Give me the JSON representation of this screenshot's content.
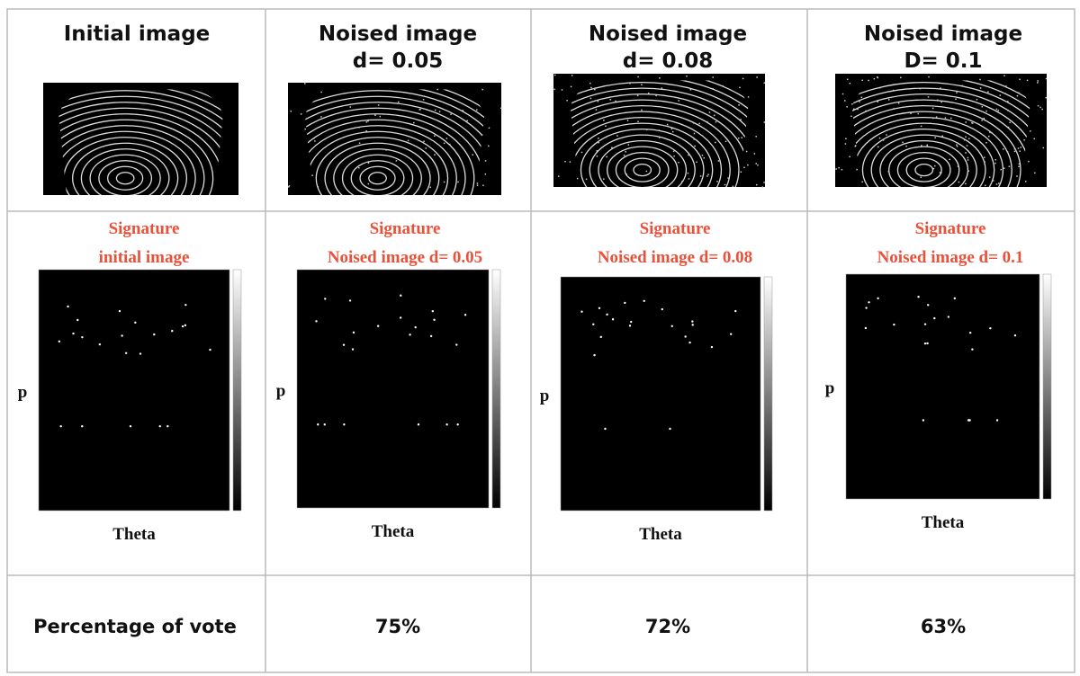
{
  "table": {
    "header": [
      {
        "title": "Initial image"
      },
      {
        "title": "Noised image",
        "subtitle": "d= 0.05"
      },
      {
        "title": "Noised image",
        "subtitle": "d= 0.08"
      },
      {
        "title": "Noised image",
        "subtitle": "D= 0.1"
      }
    ],
    "signatures": [
      {
        "title": "Signature",
        "subtitle": "initial image",
        "y_label": "p",
        "x_label": "Theta"
      },
      {
        "title": "Signature",
        "subtitle": "Noised image d= 0.05",
        "y_label": "p",
        "x_label": "Theta"
      },
      {
        "title": "Signature",
        "subtitle": "Noised image d= 0.08",
        "y_label": "p",
        "x_label": "Theta"
      },
      {
        "title": "Signature",
        "subtitle": "Noised image d= 0.1",
        "y_label": "p",
        "x_label": "Theta"
      }
    ],
    "row_label": "Percentage of vote",
    "votes": [
      "75%",
      "72%",
      "63%"
    ]
  }
}
